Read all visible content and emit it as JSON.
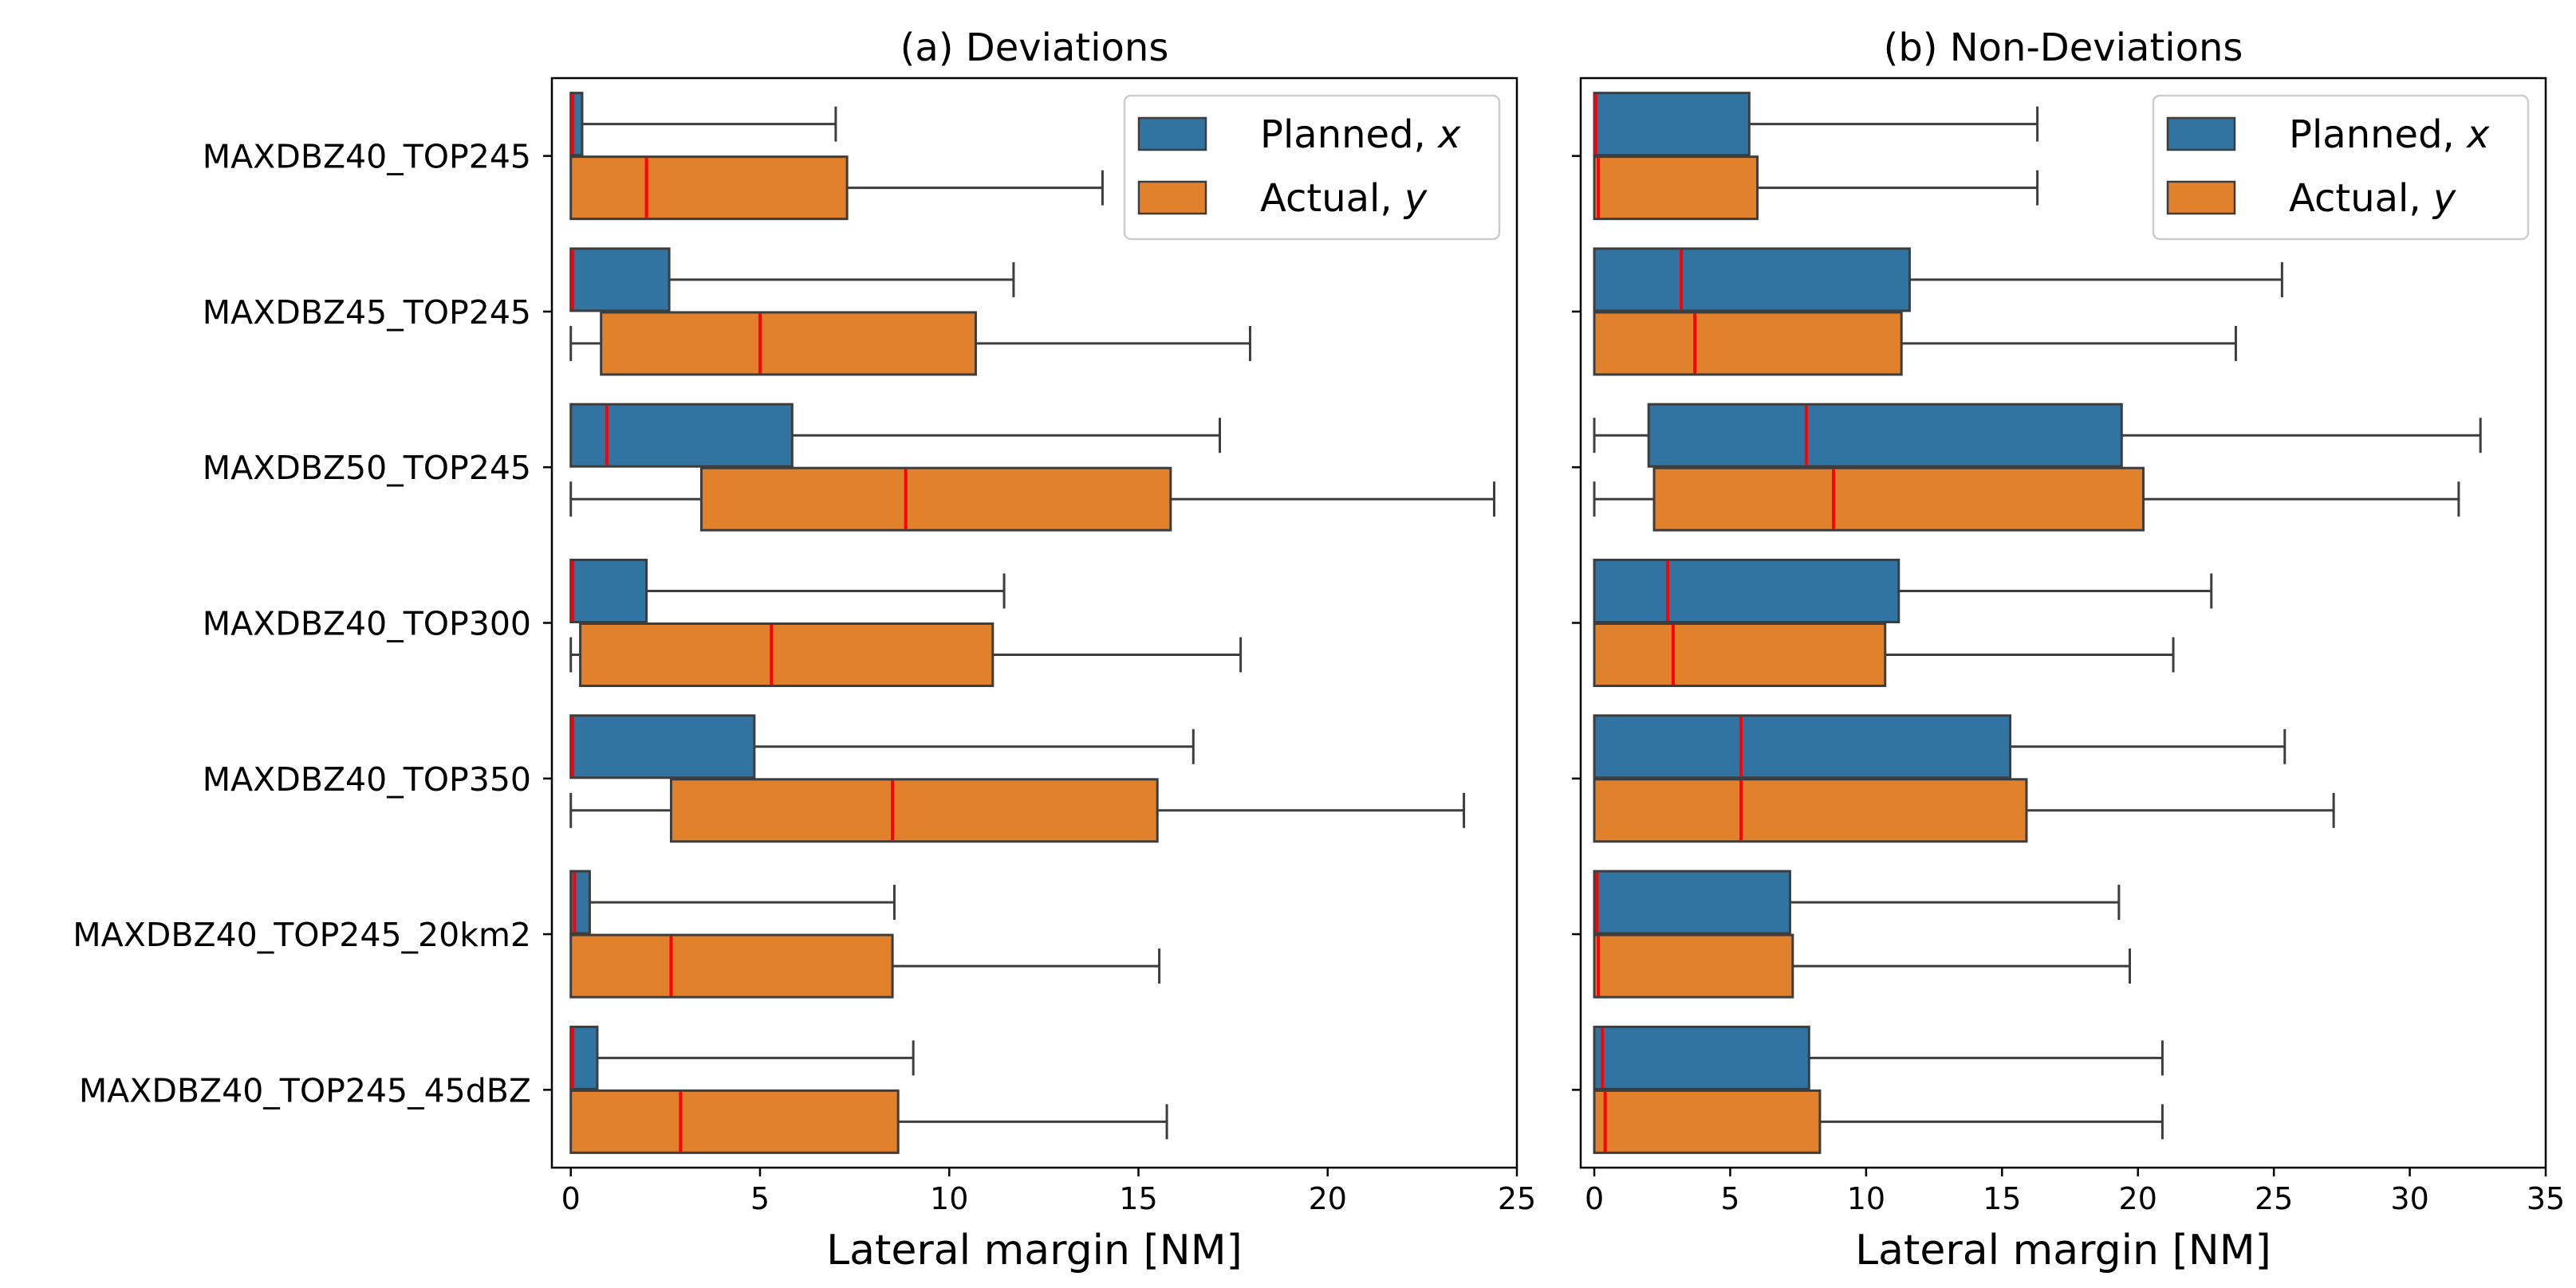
{
  "chart_data": [
    {
      "type": "boxplot",
      "title": "(a) Deviations",
      "xlabel": "Lateral margin [NM]",
      "ylabel": "",
      "xlim": [
        -0.5,
        25
      ],
      "xticks": [
        0,
        5,
        10,
        15,
        20,
        25
      ],
      "grid": false,
      "legend_position": "top-right",
      "legend": [
        {
          "label": "Planned, ",
          "var": "x",
          "color": "#3274a1"
        },
        {
          "label": "Actual, ",
          "var": "y",
          "color": "#e1812c"
        }
      ],
      "categories": [
        "MAXDBZ40_TOP245",
        "MAXDBZ45_TOP245",
        "MAXDBZ50_TOP245",
        "MAXDBZ40_TOP300",
        "MAXDBZ40_TOP350",
        "MAXDBZ40_TOP245_20km2",
        "MAXDBZ40_TOP245_45dBZ"
      ],
      "series": [
        {
          "name": "Planned, x",
          "color": "#3274a1",
          "boxes": [
            {
              "whislo": 0,
              "q1": 0,
              "med": 0.05,
              "q3": 0.3,
              "whishi": 7.0
            },
            {
              "whislo": 0,
              "q1": 0,
              "med": 0.05,
              "q3": 2.6,
              "whishi": 11.7
            },
            {
              "whislo": 0,
              "q1": 0,
              "med": 0.95,
              "q3": 5.85,
              "whishi": 17.15
            },
            {
              "whislo": 0,
              "q1": 0,
              "med": 0.05,
              "q3": 2.0,
              "whishi": 11.45
            },
            {
              "whislo": 0,
              "q1": 0,
              "med": 0.05,
              "q3": 4.85,
              "whishi": 16.45
            },
            {
              "whislo": 0,
              "q1": 0,
              "med": 0.1,
              "q3": 0.5,
              "whishi": 8.55
            },
            {
              "whislo": 0,
              "q1": 0,
              "med": 0.05,
              "q3": 0.7,
              "whishi": 9.05
            }
          ]
        },
        {
          "name": "Actual, y",
          "color": "#e1812c",
          "boxes": [
            {
              "whislo": 0,
              "q1": 0,
              "med": 2.0,
              "q3": 7.3,
              "whishi": 14.05
            },
            {
              "whislo": 0,
              "q1": 0.8,
              "med": 5.0,
              "q3": 10.7,
              "whishi": 17.95
            },
            {
              "whislo": 0,
              "q1": 3.45,
              "med": 8.85,
              "q3": 15.85,
              "whishi": 24.4
            },
            {
              "whislo": 0,
              "q1": 0.25,
              "med": 5.3,
              "q3": 11.15,
              "whishi": 17.7
            },
            {
              "whislo": 0,
              "q1": 2.65,
              "med": 8.5,
              "q3": 15.5,
              "whishi": 23.6
            },
            {
              "whislo": 0,
              "q1": 0,
              "med": 2.65,
              "q3": 8.5,
              "whishi": 15.55
            },
            {
              "whislo": 0,
              "q1": 0,
              "med": 2.9,
              "q3": 8.65,
              "whishi": 15.75
            }
          ]
        }
      ]
    },
    {
      "type": "boxplot",
      "title": "(b) Non-Deviations",
      "xlabel": "Lateral margin [NM]",
      "ylabel": "",
      "xlim": [
        -0.5,
        35
      ],
      "xticks": [
        0,
        5,
        10,
        15,
        20,
        25,
        30,
        35
      ],
      "grid": false,
      "legend_position": "top-right",
      "legend": [
        {
          "label": "Planned, ",
          "var": "x",
          "color": "#3274a1"
        },
        {
          "label": "Actual, ",
          "var": "y",
          "color": "#e1812c"
        }
      ],
      "categories": [
        "MAXDBZ40_TOP245",
        "MAXDBZ45_TOP245",
        "MAXDBZ50_TOP245",
        "MAXDBZ40_TOP300",
        "MAXDBZ40_TOP350",
        "MAXDBZ40_TOP245_20km2",
        "MAXDBZ40_TOP245_45dBZ"
      ],
      "series": [
        {
          "name": "Planned, x",
          "color": "#3274a1",
          "boxes": [
            {
              "whislo": 0,
              "q1": 0,
              "med": 0.05,
              "q3": 5.7,
              "whishi": 16.3
            },
            {
              "whislo": 0,
              "q1": 0,
              "med": 3.2,
              "q3": 11.6,
              "whishi": 25.3
            },
            {
              "whislo": 0,
              "q1": 2.0,
              "med": 7.8,
              "q3": 19.4,
              "whishi": 32.6
            },
            {
              "whislo": 0,
              "q1": 0,
              "med": 2.7,
              "q3": 11.2,
              "whishi": 22.7
            },
            {
              "whislo": 0,
              "q1": 0,
              "med": 5.4,
              "q3": 15.3,
              "whishi": 25.4
            },
            {
              "whislo": 0,
              "q1": 0,
              "med": 0.1,
              "q3": 7.2,
              "whishi": 19.3
            },
            {
              "whislo": 0,
              "q1": 0,
              "med": 0.3,
              "q3": 7.9,
              "whishi": 20.9
            }
          ]
        },
        {
          "name": "Actual, y",
          "color": "#e1812c",
          "boxes": [
            {
              "whislo": 0,
              "q1": 0,
              "med": 0.15,
              "q3": 6.0,
              "whishi": 16.3
            },
            {
              "whislo": 0,
              "q1": 0,
              "med": 3.7,
              "q3": 11.3,
              "whishi": 23.6
            },
            {
              "whislo": 0,
              "q1": 2.2,
              "med": 8.8,
              "q3": 20.2,
              "whishi": 31.8
            },
            {
              "whislo": 0,
              "q1": 0,
              "med": 2.9,
              "q3": 10.7,
              "whishi": 21.3
            },
            {
              "whislo": 0,
              "q1": 0,
              "med": 5.4,
              "q3": 15.9,
              "whishi": 27.2
            },
            {
              "whislo": 0,
              "q1": 0,
              "med": 0.15,
              "q3": 7.3,
              "whishi": 19.7
            },
            {
              "whislo": 0,
              "q1": 0,
              "med": 0.4,
              "q3": 8.3,
              "whishi": 20.9
            }
          ]
        }
      ]
    }
  ]
}
